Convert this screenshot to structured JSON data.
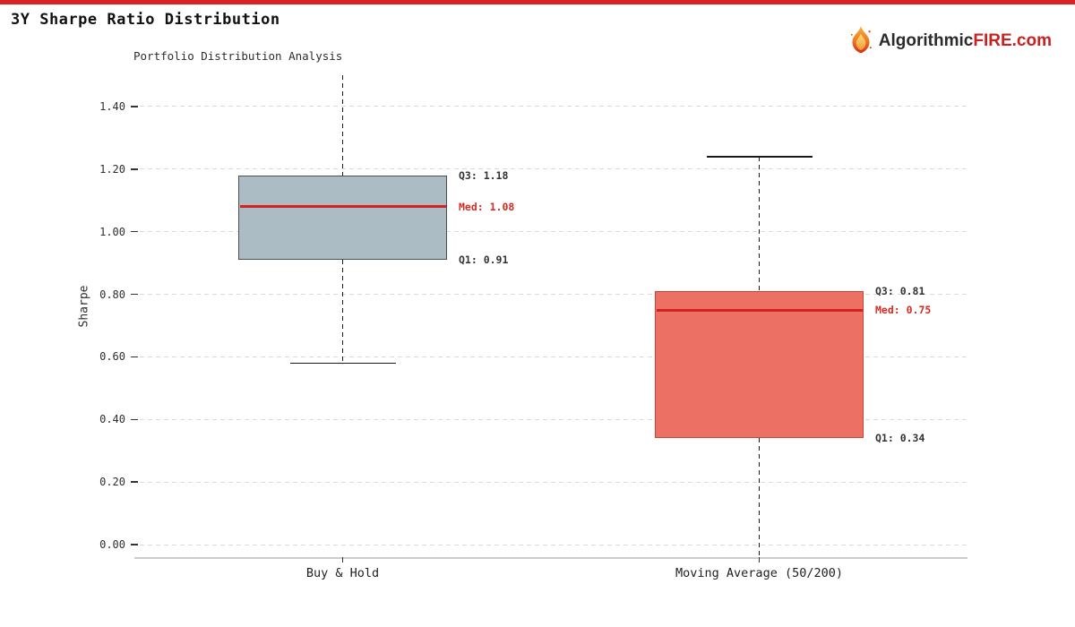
{
  "page": {
    "accent_bar_color": "#d92323",
    "title": "3Y Sharpe Ratio Distribution",
    "logo": {
      "icon": "flame-icon",
      "text_dark": "Algorithmic",
      "text_red": "FIRE",
      "text_suffix": ".com",
      "color_dark": "#2b2b2b",
      "color_red": "#c92020"
    }
  },
  "chart_data": {
    "type": "boxplot",
    "title": "Portfolio Distribution Analysis",
    "ylabel": "Sharpe",
    "ylim": [
      -0.04,
      1.5
    ],
    "yticks": [
      0.0,
      0.2,
      0.4,
      0.6,
      0.8,
      1.0,
      1.2,
      1.4
    ],
    "grid": "horizontal-dashed",
    "grid_color": "#dadada",
    "categories": [
      "Buy & Hold",
      "Moving Average (50/200)"
    ],
    "series": [
      {
        "name": "Buy & Hold",
        "q1": 0.91,
        "median": 1.08,
        "q3": 1.18,
        "whisker_low": 0.58,
        "whisker_high": null,
        "whisker_high_clipped": true,
        "annotations": {
          "q3": "Q3: 1.18",
          "median": "Med: 1.08",
          "q1": "Q1: 0.91"
        },
        "box_fill": "#abbcc4",
        "box_border": "#4d4d4d"
      },
      {
        "name": "Moving Average (50/200)",
        "q1": 0.34,
        "median": 0.75,
        "q3": 0.81,
        "whisker_low": null,
        "whisker_low_clipped": true,
        "whisker_high": 1.24,
        "annotations": {
          "q3": "Q3: 0.81",
          "median": "Med: 0.75",
          "q1": "Q1: 0.34"
        },
        "box_fill": "#ec7063",
        "box_border": "#cd4338"
      }
    ],
    "median_line_color": "#d92020",
    "median_label_color": "#d62b23",
    "annotation_color": "#333333",
    "whisker_color": "#1a1a1a",
    "tick_label_color": "#2d2d2d"
  }
}
